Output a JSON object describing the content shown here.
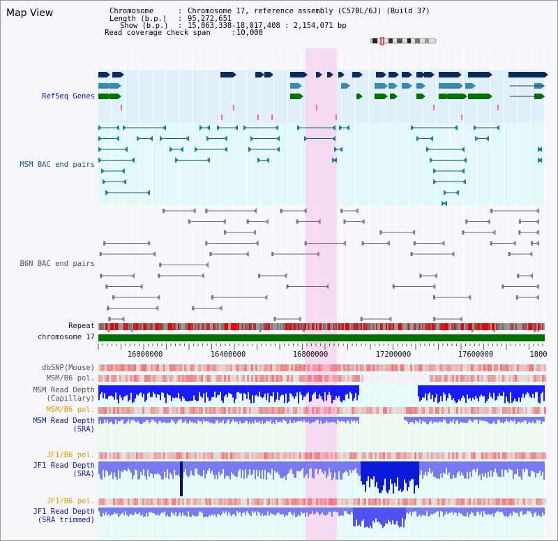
{
  "window": {
    "title": "Map View"
  },
  "info": {
    "chromosome_label": "Chromosome",
    "chromosome_value": "Chromosome 17, reference assembly (C57BL/6J) (Build 37)",
    "length_label": "Length (b.p.)",
    "length_value": "95,272,651",
    "show_label": "Show (b.p.)",
    "show_value": "15,863,338-18,017,408 : 2,154,071 bp",
    "coverage_label": "Read coverage check span",
    "coverage_value": "10,000"
  },
  "tracks": {
    "refseq": "RefSeq Genes",
    "msm_bac": "MSM BAC end pairs",
    "b6n_bac": "B6N BAC end pairs",
    "repeat": "Repeat",
    "chromosome": "chromosome 17",
    "dbsnp": "dbSNP(Mouse)",
    "msm_b6_pol_1": "MSM/B6 pol.",
    "msm_read_depth_cap_1": "MSM Read Depth",
    "msm_read_depth_cap_2": "(Capillary)",
    "msm_b6_pol_2": "MSM/B6 pol.",
    "msm_read_depth_sra_1": "MSM Read Depth",
    "msm_read_depth_sra_2": "(SRA)",
    "jf1_b6_pol_1": "JF1/B6 pol.",
    "jf1_read_depth_1": "JF1 Read Depth",
    "jf1_read_depth_2": "(SRA)",
    "jf1_b6_pol_2": "JF1/B6 pol.",
    "jf1_trim_1": "JF1 Read Depth",
    "jf1_trim_2": "(SRA trimmed)"
  },
  "axis": {
    "ticks": [
      "16000000",
      "16400000",
      "16800000",
      "17200000",
      "17600000",
      "1800"
    ]
  },
  "colors": {
    "refseq_bg": "#dff0fb",
    "msm_bac_bg": "#e3f8f8",
    "highlight": "#f7d6f0",
    "chromosome_bar": "#007000",
    "depth_blue": "#1a1aff",
    "depth_light": "#7a7af0"
  }
}
